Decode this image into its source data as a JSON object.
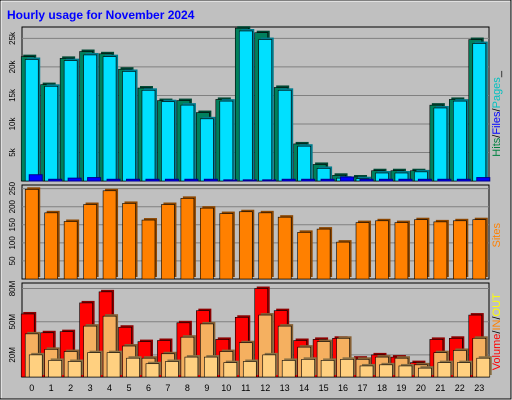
{
  "chart_data": {
    "type": "bar",
    "title": "Hourly usage for November 2024",
    "categories": [
      "0",
      "1",
      "2",
      "3",
      "4",
      "5",
      "6",
      "7",
      "8",
      "9",
      "10",
      "11",
      "12",
      "13",
      "14",
      "15",
      "16",
      "17",
      "18",
      "19",
      "20",
      "21",
      "22",
      "23"
    ],
    "panels": [
      {
        "id": "hits",
        "ylim": [
          0,
          27000
        ],
        "ticks": [
          {
            "value": 5000,
            "label": "5k"
          },
          {
            "value": 10000,
            "label": "10k"
          },
          {
            "value": 15000,
            "label": "15k"
          },
          {
            "value": 20000,
            "label": "20k"
          },
          {
            "value": 25000,
            "label": "25k"
          }
        ],
        "side_labels": [
          {
            "text": "Hits",
            "color": "#008040"
          },
          {
            "text": "/",
            "color": "#000000"
          },
          {
            "text": "Files",
            "color": "#0000ff"
          },
          {
            "text": "/",
            "color": "#000000"
          },
          {
            "text": "Pages",
            "color": "#00c0c0"
          },
          {
            "text": "_",
            "color": "#000000"
          }
        ],
        "series": [
          {
            "name": "Hits",
            "color": "#00805c",
            "values": [
              21800,
              16900,
              21500,
              22700,
              22300,
              19600,
              16300,
              14100,
              14100,
              12000,
              14300,
              26800,
              26000,
              16400,
              6500,
              2900,
              1000,
              700,
              1800,
              1800,
              1800,
              13300,
              14300,
              24800
            ]
          },
          {
            "name": "Files",
            "color": "#00e0ff",
            "values": [
              21300,
              16600,
              21100,
              22100,
              21800,
              19200,
              15900,
              13900,
              13300,
              10900,
              14000,
              26300,
              24800,
              15900,
              6100,
              2200,
              500,
              400,
              1400,
              1400,
              1600,
              12800,
              14000,
              24100
            ]
          },
          {
            "name": "Pages",
            "color": "#0000ff",
            "values": [
              1100,
              300,
              500,
              600,
              300,
              300,
              300,
              300,
              300,
              300,
              200,
              200,
              200,
              300,
              300,
              300,
              700,
              300,
              300,
              300,
              300,
              300,
              300,
              600
            ]
          }
        ]
      },
      {
        "id": "sites",
        "ylim": [
          0,
          260
        ],
        "ticks": [
          {
            "value": 50,
            "label": "50"
          },
          {
            "value": 100,
            "label": "100"
          },
          {
            "value": 150,
            "label": "150"
          },
          {
            "value": 200,
            "label": "200"
          },
          {
            "value": 250,
            "label": "250"
          }
        ],
        "side_labels": [
          {
            "text": "Sites",
            "color": "#ff8000"
          }
        ],
        "series": [
          {
            "name": "Sites",
            "color": "#ff8000",
            "values": [
              248,
              183,
              159,
              206,
              244,
              209,
              163,
              206,
              223,
              196,
              181,
              186,
              183,
              171,
              129,
              138,
              102,
              156,
              161,
              156,
              164,
              158,
              161,
              164
            ]
          }
        ]
      },
      {
        "id": "volume",
        "ylim": [
          0,
          85
        ],
        "ticks": [
          {
            "value": 20,
            "label": "20M"
          },
          {
            "value": 50,
            "label": "50M"
          },
          {
            "value": 80,
            "label": "80M"
          }
        ],
        "side_labels": [
          {
            "text": "Volume",
            "color": "#ff0000"
          },
          {
            "text": "/",
            "color": "#000000"
          },
          {
            "text": "IN",
            "color": "#ff8000"
          },
          {
            "text": "/",
            "color": "#000000"
          },
          {
            "text": "OUT",
            "color": "#ffff00"
          }
        ],
        "series": [
          {
            "name": "Volume",
            "color": "#ff0000",
            "values": [
              57,
              40,
              41,
              67,
              77,
              45,
              32,
              33,
              49,
              60,
              34,
              54,
              80,
              60,
              33,
              34,
              35,
              17,
              20,
              18,
              13,
              34,
              35,
              56
            ]
          },
          {
            "name": "IN",
            "color": "#f5b060",
            "values": [
              39,
              25,
              23,
              46,
              55,
              28,
              17,
              21,
              36,
              48,
              23,
              31,
              56,
              46,
              27,
              32,
              35,
              16,
              18,
              17,
              11,
              22,
              24,
              35
            ]
          },
          {
            "name": "OUT",
            "color": "#ffd080",
            "values": [
              20,
              15,
              14,
              22,
              22,
              17,
              12,
              14,
              18,
              18,
              13,
              14,
              20,
              15,
              16,
              15,
              16,
              10,
              11,
              10,
              8,
              13,
              13,
              17
            ]
          }
        ]
      }
    ]
  }
}
